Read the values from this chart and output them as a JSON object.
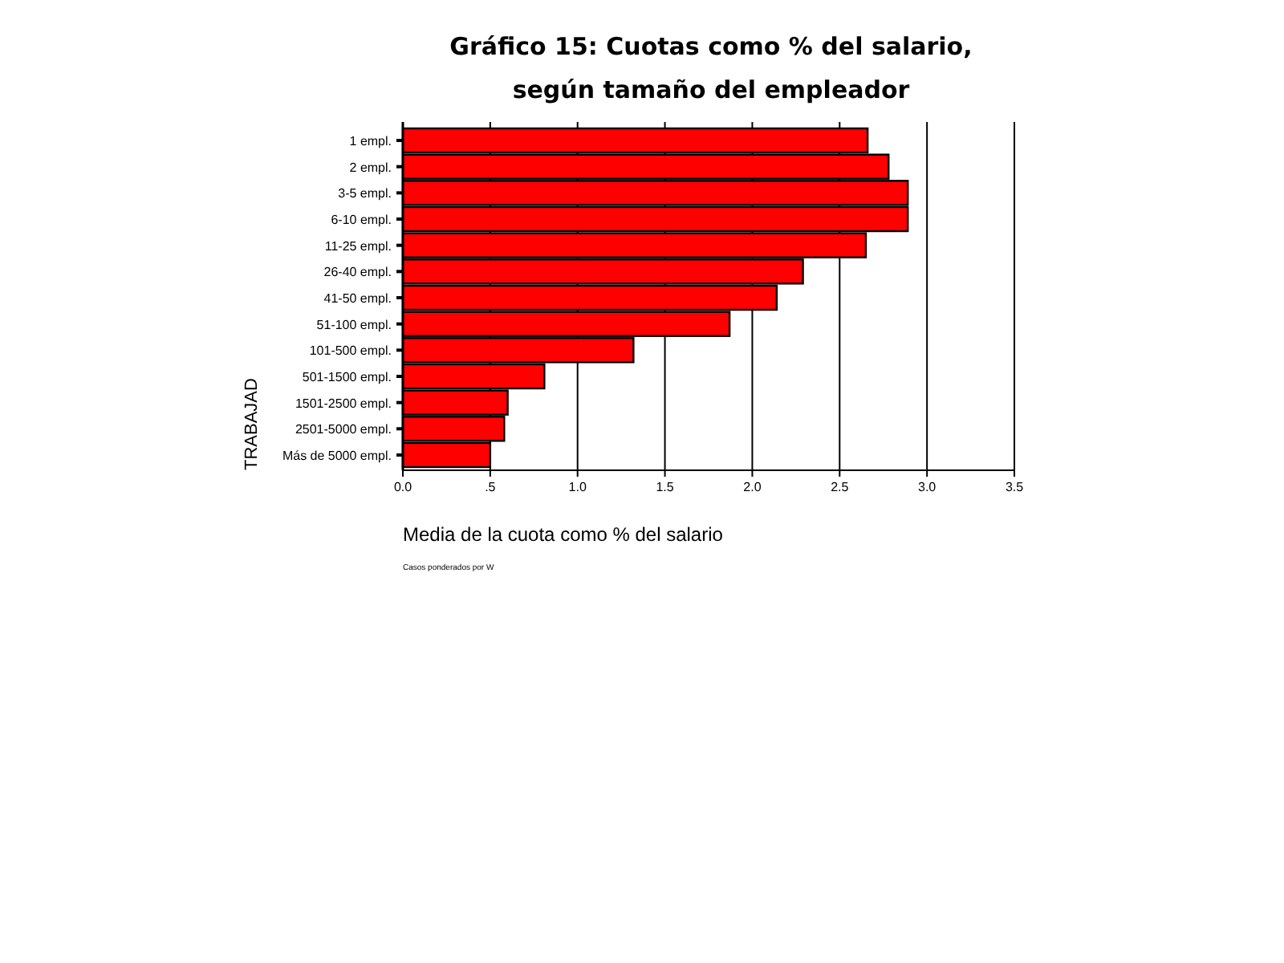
{
  "chart_data": {
    "type": "bar",
    "orientation": "horizontal",
    "title": "Gráfico 15: Cuotas como % del salario,\nsegún tamaño del empleador",
    "xlabel": "Media de la cuota como % del salario",
    "ylabel": "TRABAJAD",
    "annotations": [
      "Casos ponderados por W"
    ],
    "categories": [
      "1 empl.",
      "2 empl.",
      "3-5 empl.",
      "6-10 empl.",
      "11-25 empl.",
      "26-40 empl.",
      "41-50 empl.",
      "51-100 empl.",
      "101-500 empl.",
      "501-1500 empl.",
      "1501-2500 empl.",
      "2501-5000 empl.",
      "Más de 5000 empl."
    ],
    "values": [
      2.66,
      2.78,
      2.89,
      2.89,
      2.65,
      2.29,
      2.14,
      1.87,
      1.32,
      0.81,
      0.6,
      0.58,
      0.5
    ],
    "color": "#ff0000",
    "xlim": [
      0,
      3.5
    ],
    "xticks": [
      {
        "value": 0,
        "label": "0.0"
      },
      {
        "value": 0.5,
        "label": ".5"
      },
      {
        "value": 1,
        "label": "1.0"
      },
      {
        "value": 1.5,
        "label": "1.5"
      },
      {
        "value": 2,
        "label": "2.0"
      },
      {
        "value": 2.5,
        "label": "2.5"
      },
      {
        "value": 3,
        "label": "3.0"
      },
      {
        "value": 3.5,
        "label": "3.5"
      }
    ],
    "grid": "x"
  }
}
